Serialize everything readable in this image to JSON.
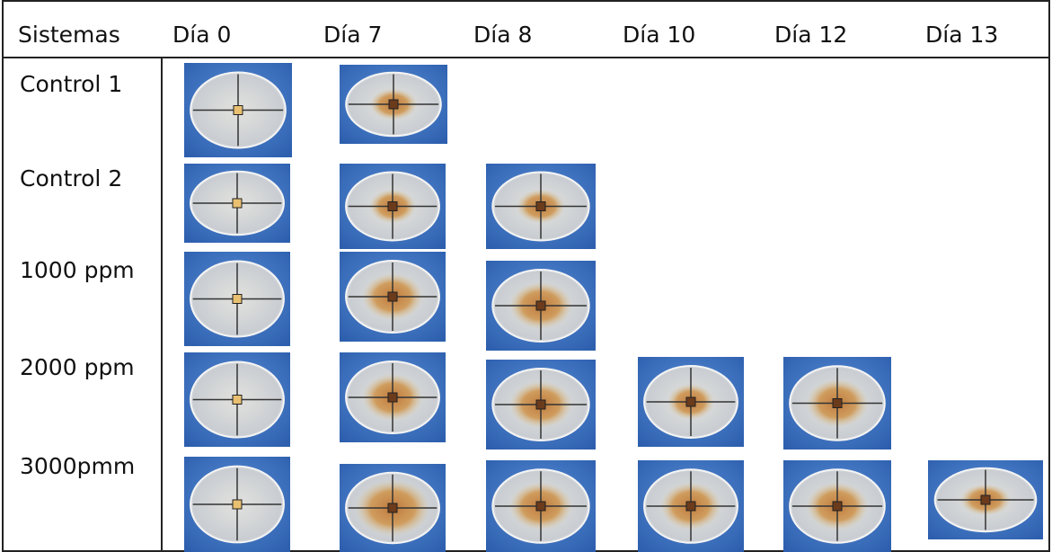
{
  "table": {
    "header": [
      "Sistemas",
      "Día 0",
      "Día 7",
      "Día 8",
      "Día 10",
      "Día 12",
      "Día 13"
    ],
    "rows": [
      "Control 1",
      "Control 2",
      "1000 ppm",
      "2000 ppm",
      "3000pmm"
    ]
  }
}
